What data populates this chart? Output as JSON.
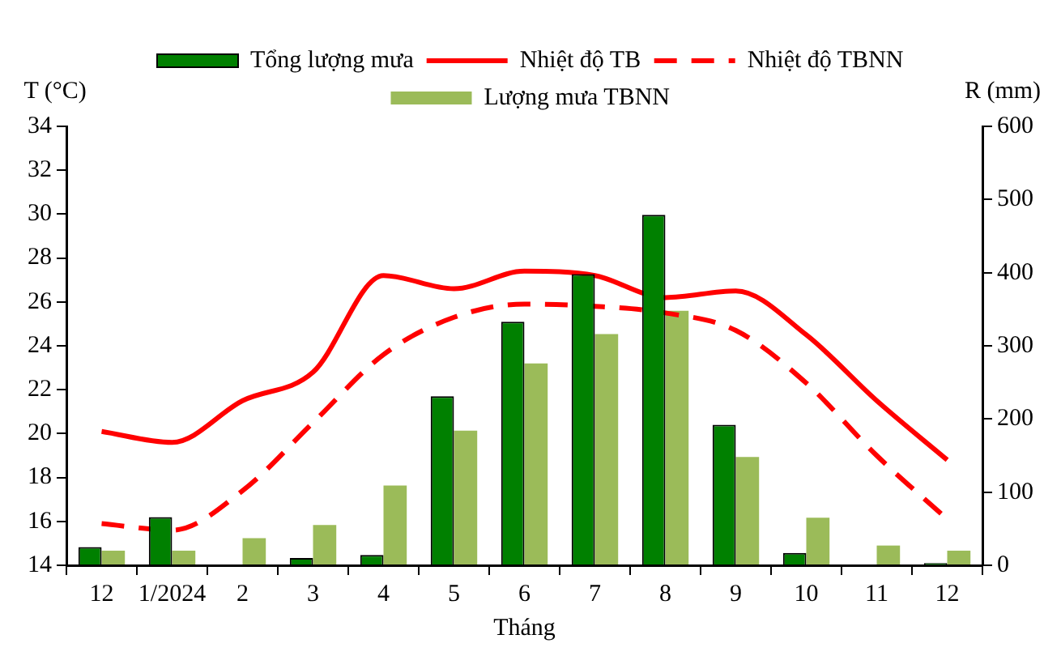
{
  "chart_data": {
    "type": "bar",
    "xlabel": "Tháng",
    "ylabel": "T (°C)",
    "y2label": "R (mm)",
    "categories": [
      "12",
      "1/2024",
      "2",
      "3",
      "4",
      "5",
      "6",
      "7",
      "8",
      "9",
      "10",
      "11",
      "12"
    ],
    "series": [
      {
        "name": "Tổng lượng mưa",
        "axis": "y2",
        "color": "#008000",
        "values": [
          25,
          66,
          0,
          10,
          14,
          231,
          333,
          398,
          479,
          192,
          17,
          0,
          3
        ]
      },
      {
        "name": "Lượng mưa TBNN",
        "axis": "y2",
        "color": "#9bbb59",
        "values": [
          20,
          20,
          37,
          55,
          109,
          184,
          276,
          316,
          348,
          148,
          65,
          27,
          20
        ]
      },
      {
        "name": "Nhiệt độ TB",
        "type": "line",
        "color": "#ff0000",
        "line_style": "solid",
        "values": [
          20.1,
          19.6,
          21.5,
          22.8,
          27.2,
          26.6,
          27.4,
          27.2,
          26.2,
          26.5,
          24.5,
          21.5,
          18.8
        ]
      },
      {
        "name": "Nhiệt độ TBNN",
        "type": "line",
        "color": "#ff0000",
        "line_style": "dashed",
        "values": [
          15.9,
          15.6,
          17.4,
          20.5,
          23.6,
          25.3,
          25.9,
          25.8,
          25.5,
          24.7,
          22.3,
          19.0,
          16.1
        ]
      }
    ],
    "ylim": [
      14,
      34
    ],
    "yticks": [
      14,
      16,
      18,
      20,
      22,
      24,
      26,
      28,
      30,
      32,
      34
    ],
    "y2lim": [
      0,
      600
    ],
    "y2ticks": [
      0,
      100,
      200,
      300,
      400,
      500,
      600
    ],
    "grid": false,
    "legend": "top",
    "marker": "none"
  }
}
